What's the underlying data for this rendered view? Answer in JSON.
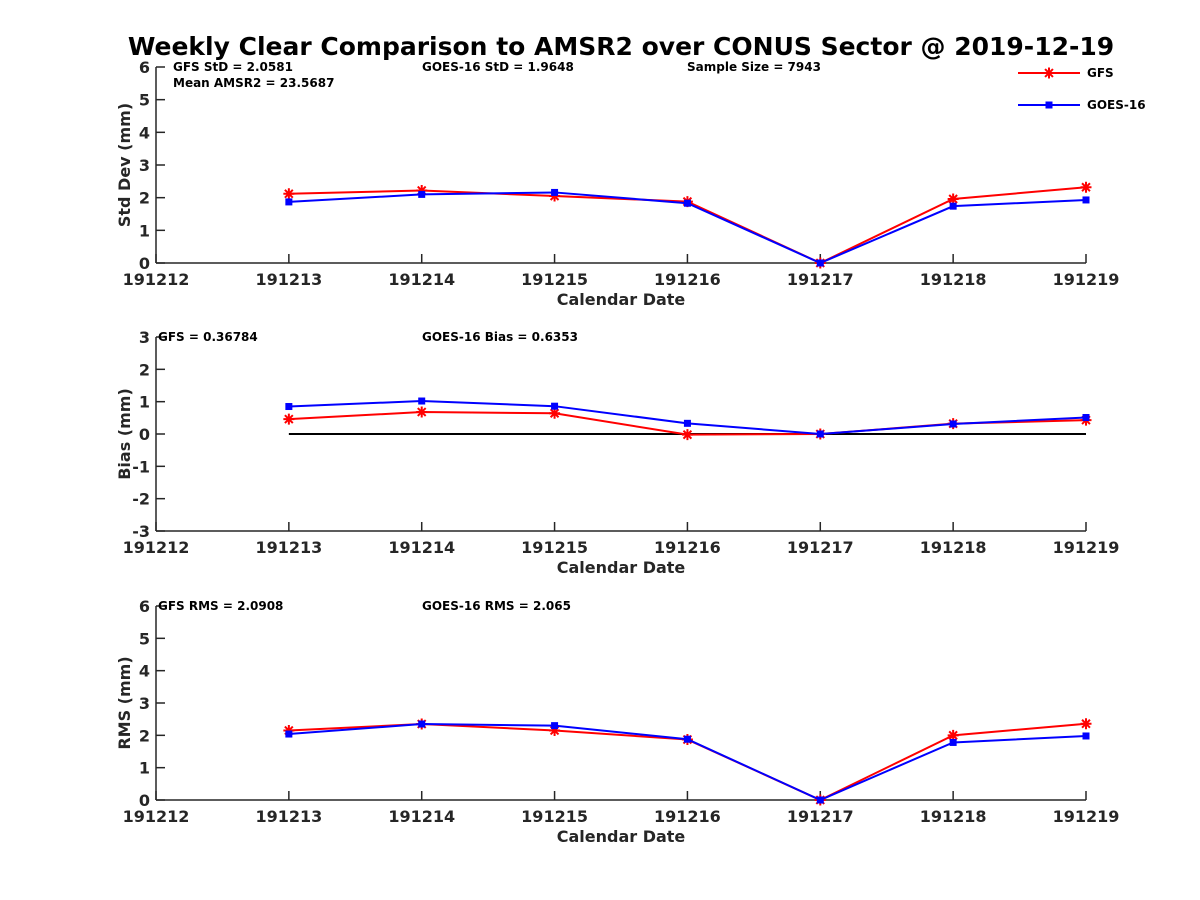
{
  "figure": {
    "title": "Weekly Clear Comparison to AMSR2 over CONUS Sector @ 2019-12-19"
  },
  "legend": {
    "placement": "top-right",
    "entries": [
      {
        "name": "GFS",
        "color": "#ff0000",
        "marker": "asterisk"
      },
      {
        "name": "GOES-16",
        "color": "#0000ff",
        "marker": "square"
      }
    ]
  },
  "chart_data": [
    {
      "type": "line",
      "xlabel": "Calendar Date",
      "ylabel": "Std Dev (mm)",
      "x_ticks": [
        "191212",
        "191213",
        "191214",
        "191215",
        "191216",
        "191217",
        "191218",
        "191219"
      ],
      "yticks": [
        0,
        1,
        2,
        3,
        4,
        5,
        6
      ],
      "ylim": [
        0,
        6
      ],
      "grid": false,
      "reference_line": null,
      "x": [
        "191213",
        "191214",
        "191215",
        "191216",
        "191217",
        "191218",
        "191219"
      ],
      "series": [
        {
          "name": "GFS",
          "color": "#ff0000",
          "values": [
            2.12,
            2.22,
            2.05,
            1.88,
            0.0,
            1.96,
            2.32
          ]
        },
        {
          "name": "GOES-16",
          "color": "#0000ff",
          "values": [
            1.87,
            2.1,
            2.16,
            1.83,
            0.0,
            1.74,
            1.93
          ]
        }
      ],
      "annotations": [
        {
          "text": "GFS StD = 2.0581"
        },
        {
          "text": "Mean AMSR2 = 23.5687"
        },
        {
          "text": "GOES-16 StD = 1.9648"
        },
        {
          "text": "Sample Size = 7943"
        }
      ]
    },
    {
      "type": "line",
      "xlabel": "Calendar Date",
      "ylabel": "Bias (mm)",
      "x_ticks": [
        "191212",
        "191213",
        "191214",
        "191215",
        "191216",
        "191217",
        "191218",
        "191219"
      ],
      "yticks": [
        -3,
        -2,
        -1,
        0,
        1,
        2,
        3
      ],
      "ylim": [
        -3,
        3
      ],
      "grid": false,
      "reference_line": 0,
      "x": [
        "191213",
        "191214",
        "191215",
        "191216",
        "191217",
        "191218",
        "191219"
      ],
      "series": [
        {
          "name": "GFS",
          "color": "#ff0000",
          "values": [
            0.46,
            0.68,
            0.64,
            -0.02,
            0.0,
            0.32,
            0.43
          ]
        },
        {
          "name": "GOES-16",
          "color": "#0000ff",
          "values": [
            0.85,
            1.02,
            0.86,
            0.33,
            0.0,
            0.31,
            0.51
          ]
        }
      ],
      "annotations": [
        {
          "text": "GFS = 0.36784"
        },
        {
          "text": "GOES-16 Bias  = 0.6353"
        }
      ]
    },
    {
      "type": "line",
      "xlabel": "Calendar Date",
      "ylabel": "RMS (mm)",
      "x_ticks": [
        "191212",
        "191213",
        "191214",
        "191215",
        "191216",
        "191217",
        "191218",
        "191219"
      ],
      "yticks": [
        0,
        1,
        2,
        3,
        4,
        5,
        6
      ],
      "ylim": [
        0,
        6
      ],
      "grid": false,
      "reference_line": null,
      "x": [
        "191213",
        "191214",
        "191215",
        "191216",
        "191217",
        "191218",
        "191219"
      ],
      "series": [
        {
          "name": "GFS",
          "color": "#ff0000",
          "values": [
            2.15,
            2.35,
            2.15,
            1.87,
            0.0,
            2.0,
            2.36
          ]
        },
        {
          "name": "GOES-16",
          "color": "#0000ff",
          "values": [
            2.04,
            2.35,
            2.3,
            1.88,
            0.0,
            1.78,
            1.98
          ]
        }
      ],
      "annotations": [
        {
          "text": "GFS RMS = 2.0908"
        },
        {
          "text": "GOES-16 RMS = 2.065"
        }
      ]
    }
  ]
}
